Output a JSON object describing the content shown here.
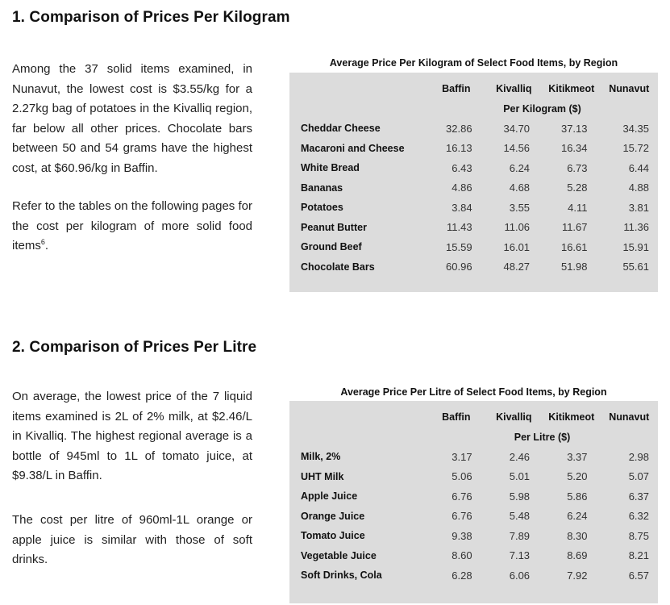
{
  "section1": {
    "title": "1. Comparison of Prices Per Kilogram",
    "paragraph1": "Among the 37 solid items examined, in Nunavut, the lowest cost is $3.55/kg for a 2.27kg bag of potatoes in the Kivalliq region, far below all other prices. Chocolate bars between 50 and 54 grams have the highest cost, at $60.96/kg in Baffin.",
    "paragraph2": "Refer to the tables on the following pages for the cost per kilogram of more solid food items",
    "footnote_ref": "6",
    "paragraph2_end": ".",
    "table": {
      "caption": "Average Price Per Kilogram of Select Food Items, by Region",
      "columns": [
        "Baffin",
        "Kivalliq",
        "Kitikmeot",
        "Nunavut"
      ],
      "unit_label": "Per Kilogram ($)",
      "rows": [
        {
          "item": "Cheddar Cheese",
          "values": [
            "32.86",
            "34.70",
            "37.13",
            "34.35"
          ]
        },
        {
          "item": "Macaroni and Cheese",
          "values": [
            "16.13",
            "14.56",
            "16.34",
            "15.72"
          ]
        },
        {
          "item": "White Bread",
          "values": [
            "6.43",
            "6.24",
            "6.73",
            "6.44"
          ]
        },
        {
          "item": "Bananas",
          "values": [
            "4.86",
            "4.68",
            "5.28",
            "4.88"
          ]
        },
        {
          "item": "Potatoes",
          "values": [
            "3.84",
            "3.55",
            "4.11",
            "3.81"
          ]
        },
        {
          "item": "Peanut Butter",
          "values": [
            "11.43",
            "11.06",
            "11.67",
            "11.36"
          ]
        },
        {
          "item": "Ground Beef",
          "values": [
            "15.59",
            "16.01",
            "16.61",
            "15.91"
          ]
        },
        {
          "item": "Chocolate Bars",
          "values": [
            "60.96",
            "48.27",
            "51.98",
            "55.61"
          ]
        }
      ]
    }
  },
  "section2": {
    "title": "2. Comparison of Prices Per Litre",
    "paragraph1": "On average, the lowest price of the 7 liquid items examined is 2L of 2% milk, at $2.46/L in Kivalliq. The highest regional average is a bottle of 945ml to 1L of tomato juice, at $9.38/L in Baffin.",
    "paragraph2": "The cost per litre of 960ml-1L orange or apple juice is similar with those of soft drinks.",
    "table": {
      "caption": "Average Price Per Litre of Select Food Items, by Region",
      "columns": [
        "Baffin",
        "Kivalliq",
        "Kitikmeot",
        "Nunavut"
      ],
      "unit_label": "Per Litre ($)",
      "rows": [
        {
          "item": "Milk, 2%",
          "values": [
            "3.17",
            "2.46",
            "3.37",
            "2.98"
          ]
        },
        {
          "item": "UHT Milk",
          "values": [
            "5.06",
            "5.01",
            "5.20",
            "5.07"
          ]
        },
        {
          "item": "Apple Juice",
          "values": [
            "6.76",
            "5.98",
            "5.86",
            "6.37"
          ]
        },
        {
          "item": "Orange Juice",
          "values": [
            "6.76",
            "5.48",
            "6.24",
            "6.32"
          ]
        },
        {
          "item": "Tomato Juice",
          "values": [
            "9.38",
            "7.89",
            "8.30",
            "8.75"
          ]
        },
        {
          "item": "Vegetable Juice",
          "values": [
            "8.60",
            "7.13",
            "8.69",
            "8.21"
          ]
        },
        {
          "item": "Soft Drinks, Cola",
          "values": [
            "6.28",
            "6.06",
            "7.92",
            "6.57"
          ]
        }
      ]
    }
  },
  "colors": {
    "table_background": "#dcdcdc",
    "text": "#1a1a1a"
  }
}
